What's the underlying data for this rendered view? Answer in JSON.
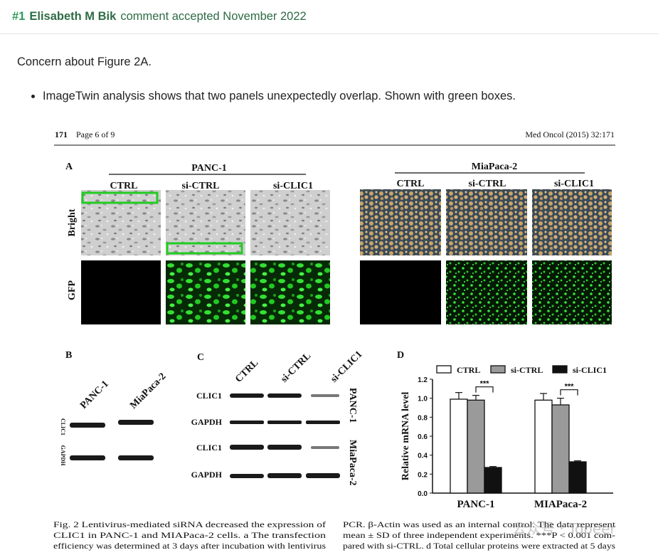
{
  "comment": {
    "number": "#1",
    "author": "Elisabeth M Bik",
    "status": "comment accepted November 2022"
  },
  "body": {
    "concern": "Concern about Figure 2A.",
    "bullets": [
      "ImageTwin analysis shows that two panels unexpectedly overlap. Shown with green boxes."
    ]
  },
  "figure": {
    "page_header_left_num": "171",
    "page_header_left_text": "Page 6 of 9",
    "page_header_right": "Med Oncol (2015) 32:171",
    "panel_a": {
      "label": "A",
      "group1": "PANC-1",
      "group2": "MiaPaca-2",
      "columns": [
        "CTRL",
        "si-CTRL",
        "si-CLIC1"
      ],
      "row_labels": [
        "Bright",
        "GFP"
      ],
      "highlight_color": "#22cc22"
    },
    "panel_b": {
      "label": "B",
      "lanes": [
        "PANC-1",
        "MiaPaca-2"
      ],
      "bands": [
        "CLIC1",
        "GAPDH"
      ]
    },
    "panel_c": {
      "label": "C",
      "lanes": [
        "CTRL",
        "si-CTRL",
        "si-CLIC1"
      ],
      "bands": [
        "CLIC1",
        "GAPDH",
        "CLIC1",
        "GAPDH"
      ],
      "side_labels": [
        "PANC-1",
        "MiaPaca-2"
      ]
    },
    "panel_d": {
      "label": "D",
      "chart_data": {
        "type": "bar",
        "categories": [
          "PANC-1",
          "MIAPaca-2"
        ],
        "series": [
          {
            "name": "CTRL",
            "values": [
              0.99,
              0.98
            ],
            "errors": [
              0.07,
              0.07
            ],
            "color": "#ffffff"
          },
          {
            "name": "si-CTRL",
            "values": [
              0.98,
              0.93
            ],
            "errors": [
              0.05,
              0.07
            ],
            "color": "#9a9a9a"
          },
          {
            "name": "si-CLIC1",
            "values": [
              0.27,
              0.33
            ],
            "errors": [
              0.01,
              0.01
            ],
            "color": "#111111"
          }
        ],
        "ylabel": "Relative mRNA level",
        "ylim": [
          0,
          1.2
        ],
        "yticks": [
          "0.0",
          "0.2",
          "0.4",
          "0.6",
          "0.8",
          "1.0",
          "1.2"
        ],
        "significance": "***",
        "legend": "top"
      }
    },
    "caption_left": [
      "Fig. 2  Lentivirus-mediated siRNA decreased the expression of",
      "CLIC1 in PANC-1 and MIAPaca-2 cells. a The transfection",
      "efficiency was determined at 3 days after incubation with lentivirus"
    ],
    "caption_right": [
      "PCR. β-Actin was used as an internal control. The data represent",
      "mean ± SD of three independent experiments. ***P < 0.001 com-",
      "pared with si-CTRL. d Total cellular proteins were extracted at 5 days"
    ],
    "watermark": "公众号 · Topeer"
  }
}
